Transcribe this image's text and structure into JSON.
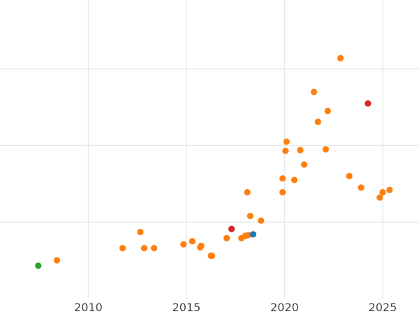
{
  "chart_data": {
    "type": "scatter",
    "title": "",
    "xlabel": "",
    "ylabel": "",
    "grid": true,
    "legend": "none",
    "xlim": [
      2005.5,
      2026.85
    ],
    "ylim": [
      -0.5,
      3.4
    ],
    "x_ticks": [
      2010,
      2015,
      2020,
      2025
    ],
    "x_tick_labels": [
      "2010",
      "2015",
      "2020",
      "2025"
    ],
    "y_gridlines": [
      0.5,
      1.5,
      2.5
    ],
    "series": [
      {
        "color": "#ff7f0e",
        "points": [
          {
            "x": 2008.4,
            "y": 0.0
          },
          {
            "x": 2011.75,
            "y": 0.16
          },
          {
            "x": 2012.65,
            "y": 0.37
          },
          {
            "x": 2012.85,
            "y": 0.16
          },
          {
            "x": 2013.35,
            "y": 0.16
          },
          {
            "x": 2014.85,
            "y": 0.21
          },
          {
            "x": 2015.3,
            "y": 0.25
          },
          {
            "x": 2015.7,
            "y": 0.17
          },
          {
            "x": 2015.75,
            "y": 0.19
          },
          {
            "x": 2016.25,
            "y": 0.06
          },
          {
            "x": 2016.3,
            "y": 0.06
          },
          {
            "x": 2017.05,
            "y": 0.29
          },
          {
            "x": 2017.8,
            "y": 0.29
          },
          {
            "x": 2018.0,
            "y": 0.32
          },
          {
            "x": 2018.15,
            "y": 0.33
          },
          {
            "x": 2018.25,
            "y": 0.58
          },
          {
            "x": 2018.1,
            "y": 0.89
          },
          {
            "x": 2018.8,
            "y": 0.52
          },
          {
            "x": 2019.9,
            "y": 0.89
          },
          {
            "x": 2019.9,
            "y": 1.07
          },
          {
            "x": 2020.05,
            "y": 1.43
          },
          {
            "x": 2020.1,
            "y": 1.55
          },
          {
            "x": 2020.5,
            "y": 1.05
          },
          {
            "x": 2020.8,
            "y": 1.44
          },
          {
            "x": 2021.0,
            "y": 1.25
          },
          {
            "x": 2021.5,
            "y": 2.2
          },
          {
            "x": 2021.7,
            "y": 1.81
          },
          {
            "x": 2022.1,
            "y": 1.45
          },
          {
            "x": 2022.2,
            "y": 1.95
          },
          {
            "x": 2022.85,
            "y": 2.64
          },
          {
            "x": 2023.3,
            "y": 1.1
          },
          {
            "x": 2023.9,
            "y": 0.95
          },
          {
            "x": 2024.85,
            "y": 0.82
          },
          {
            "x": 2025.0,
            "y": 0.89
          },
          {
            "x": 2025.35,
            "y": 0.92
          }
        ]
      },
      {
        "color": "#d62728",
        "points": [
          {
            "x": 2017.3,
            "y": 0.41
          },
          {
            "x": 2024.25,
            "y": 2.05
          }
        ]
      },
      {
        "color": "#1f77b4",
        "points": [
          {
            "x": 2018.4,
            "y": 0.34
          }
        ]
      },
      {
        "color": "#2ca02c",
        "points": [
          {
            "x": 2007.45,
            "y": -0.07
          }
        ]
      }
    ]
  }
}
